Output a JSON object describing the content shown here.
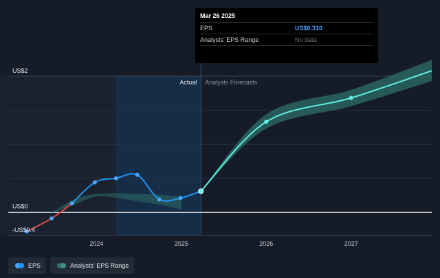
{
  "tooltip": {
    "date": "Mar 26 2025",
    "rows": [
      {
        "label": "EPS",
        "value": "US$0.310"
      },
      {
        "label": "Analysts' EPS Range",
        "value": "No data"
      }
    ]
  },
  "legend": [
    {
      "label": "EPS",
      "colors": [
        "#4aa3ff",
        "#2196f3"
      ]
    },
    {
      "label": "Analysts' EPS Range",
      "colors": [
        "#2f6f6a",
        "#3a8f87"
      ]
    }
  ],
  "colors": {
    "eps": "#2196f3",
    "eps_negative": "#e14b4b",
    "forecast": "#5ff0e6",
    "band": "#2e6d68",
    "background": "#151c27",
    "past_shade": "#1a2230",
    "highlight": "#16304d"
  },
  "chart_data": {
    "type": "line",
    "divider_labels": {
      "left": "Actual",
      "right": "Analysts Forecasts"
    },
    "y_ticks": [
      {
        "value": 2,
        "label": "US$2"
      },
      {
        "value": 0,
        "label": "US$0"
      },
      {
        "value": -0.4,
        "label": "-US$0.4"
      }
    ],
    "x_ticks": [
      {
        "value": 2024.0,
        "label": "2024"
      },
      {
        "value": 2025.0,
        "label": "2025"
      },
      {
        "value": 2026.0,
        "label": "2026"
      },
      {
        "value": 2027.0,
        "label": "2027"
      }
    ],
    "xlim": [
      2022.96,
      2027.95
    ],
    "ylim": [
      -0.34,
      2.0
    ],
    "divider_x": 2025.23,
    "series": [
      {
        "name": "EPS",
        "points": [
          [
            2023.18,
            -0.28
          ],
          [
            2023.47,
            -0.09
          ],
          [
            2023.71,
            0.13
          ],
          [
            2023.98,
            0.44
          ],
          [
            2024.23,
            0.5
          ],
          [
            2024.48,
            0.55
          ],
          [
            2024.74,
            0.19
          ],
          [
            2024.99,
            0.21
          ],
          [
            2025.23,
            0.31
          ]
        ]
      },
      {
        "name": "Analysts' EPS Range",
        "range": [
          [
            2023.45,
            -0.02,
            -0.02
          ],
          [
            2023.75,
            0.2,
            0.12
          ],
          [
            2024.0,
            0.27,
            0.23
          ],
          [
            2024.25,
            0.28,
            0.21
          ],
          [
            2024.5,
            0.27,
            0.16
          ],
          [
            2024.75,
            0.26,
            0.11
          ],
          [
            2025.0,
            0.23,
            0.04
          ]
        ]
      },
      {
        "name": "Forecast",
        "points": [
          [
            2025.23,
            0.31
          ],
          [
            2026.0,
            1.33
          ],
          [
            2027.0,
            1.68
          ],
          [
            2027.95,
            2.08
          ]
        ],
        "band": [
          [
            2025.23,
            0.31,
            0.31
          ],
          [
            2026.0,
            1.44,
            1.23
          ],
          [
            2027.0,
            1.8,
            1.56
          ],
          [
            2027.95,
            2.24,
            1.93
          ]
        ]
      }
    ]
  }
}
